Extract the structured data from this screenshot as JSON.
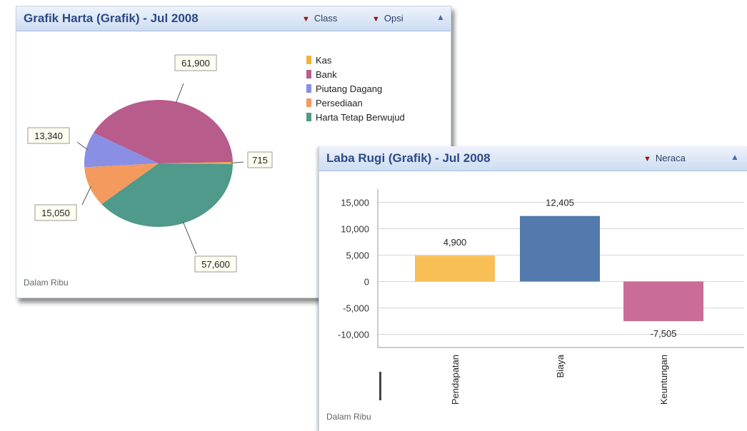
{
  "pie_panel": {
    "title": "Grafik Harta (Grafik) - Jul 2008",
    "menu_class": "Class",
    "menu_opsi": "Opsi",
    "footnote": "Dalam Ribu"
  },
  "bar_panel": {
    "title": "Laba Rugi (Grafik) - Jul 2008",
    "menu_neraca": "Neraca",
    "footnote": "Dalam Ribu"
  },
  "chart_data": [
    {
      "type": "pie",
      "categories": [
        "Kas",
        "Bank",
        "Piutang Dagang",
        "Persediaan",
        "Harta Tetap Berwujud"
      ],
      "values": [
        715,
        61900,
        13340,
        15050,
        57600
      ],
      "value_labels": [
        "715",
        "61,900",
        "13,340",
        "15,050",
        "57,600"
      ],
      "colors": [
        "#f2b33d",
        "#b85c8c",
        "#8a8fe6",
        "#f49a5e",
        "#4f9a8a"
      ],
      "legend": "right"
    },
    {
      "type": "bar",
      "categories": [
        "Pendapatan",
        "Biaya",
        "Keuntungan"
      ],
      "values": [
        4900,
        12405,
        -7505
      ],
      "value_labels": [
        "4,900",
        "12,405",
        "-7,505"
      ],
      "colors": [
        "#f7bf56",
        "#5479ad",
        "#c96d97"
      ],
      "ylim": [
        -12500,
        17500
      ],
      "yticks": [
        15000,
        10000,
        5000,
        0,
        -5000,
        -10000
      ],
      "ytick_labels": [
        "15,000",
        "10,000",
        "5,000",
        "0",
        "-5,000",
        "-10,000"
      ],
      "grid": true
    }
  ]
}
